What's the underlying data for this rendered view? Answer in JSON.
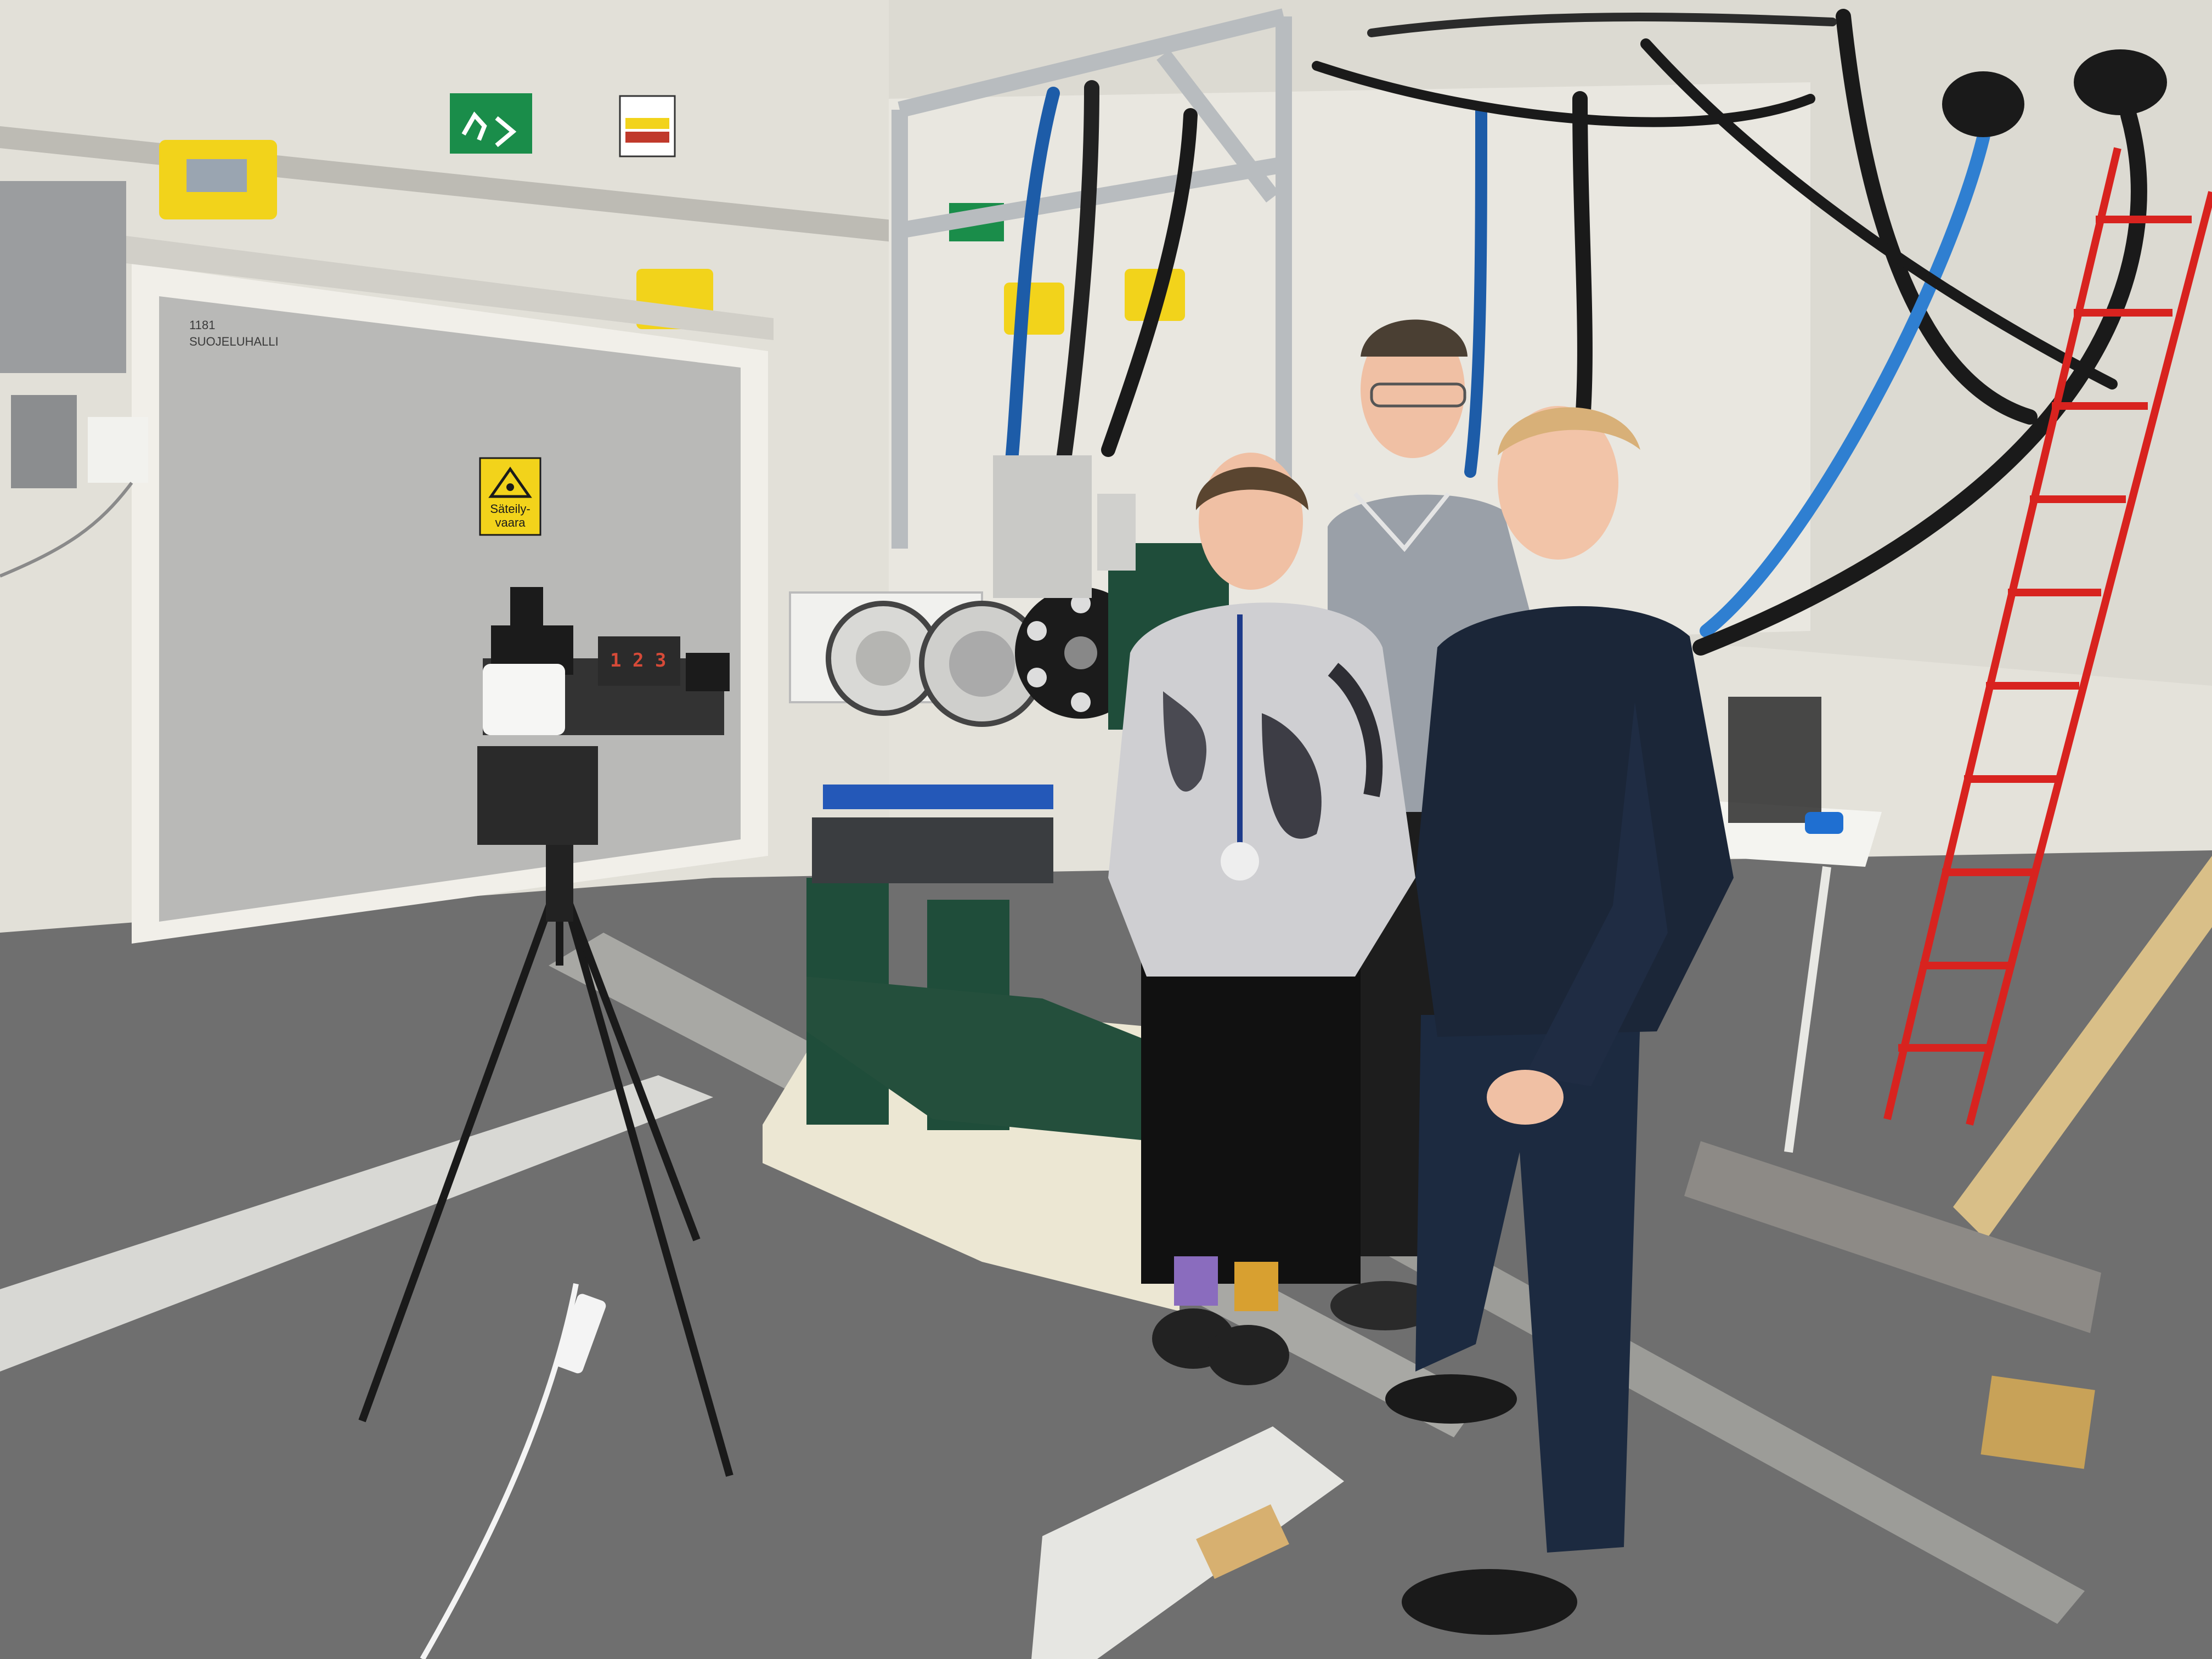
{
  "scene": {
    "door_sign": {
      "line1": "Säteily-",
      "line2": "vaara"
    },
    "door_label": {
      "line1": "1181",
      "line2": "SUOJELUHALLI"
    },
    "camera_counter": "1 2 3",
    "colors": {
      "wall": "#e6e4dc",
      "floor": "#6e6e6e",
      "shield_door": "#b9b9b7",
      "machine_green": "#1f4d3a",
      "warning_yellow": "#f2d31b",
      "ladder_red": "#d8231f",
      "exit_green": "#1a8d4a"
    }
  }
}
